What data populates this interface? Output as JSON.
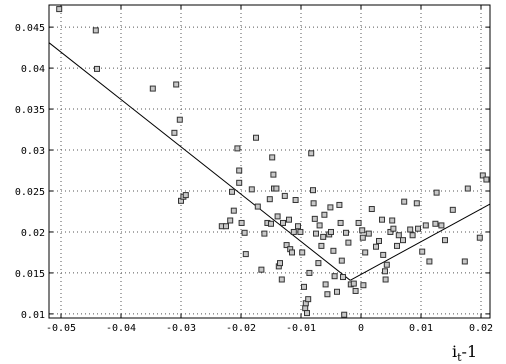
{
  "chart_data": {
    "type": "scatter",
    "title": "",
    "xlabel": {
      "main": "i",
      "subscript": "t",
      "suffix": "-1"
    },
    "ylabel": "",
    "xlim": [
      -0.052,
      0.0215
    ],
    "ylim": [
      0.0095,
      0.0477
    ],
    "x_ticks": [
      -0.05,
      -0.04,
      -0.03,
      -0.02,
      -0.01,
      0,
      0.01,
      0.02
    ],
    "x_tick_labels": [
      "-0.05",
      "-0.04",
      "-0.03",
      "-0.02",
      "-0.01",
      "0",
      "0.01",
      "0.02"
    ],
    "y_ticks": [
      0.01,
      0.015,
      0.02,
      0.025,
      0.03,
      0.035,
      0.04,
      0.045
    ],
    "y_tick_labels": [
      "0.01",
      "0.015",
      "0.02",
      "0.025",
      "0.03",
      "0.035",
      "0.04",
      "0.045"
    ],
    "grid": true,
    "marker": "hollow-square",
    "colors": {
      "marker_fill": "#c8c8c8",
      "marker_stroke": "#333333",
      "line": "#000000",
      "grid": "#555555"
    },
    "points": [
      [
        -0.0503,
        0.0472
      ],
      [
        -0.0442,
        0.0446
      ],
      [
        -0.044,
        0.0399
      ],
      [
        -0.0347,
        0.0375
      ],
      [
        -0.0308,
        0.038
      ],
      [
        -0.0311,
        0.0321
      ],
      [
        -0.0302,
        0.0337
      ],
      [
        -0.03,
        0.0238
      ],
      [
        -0.0296,
        0.0243
      ],
      [
        -0.0292,
        0.0245
      ],
      [
        -0.0232,
        0.0207
      ],
      [
        -0.0225,
        0.0207
      ],
      [
        -0.0218,
        0.0214
      ],
      [
        -0.0215,
        0.0249
      ],
      [
        -0.0212,
        0.0226
      ],
      [
        -0.0206,
        0.0302
      ],
      [
        -0.0203,
        0.0275
      ],
      [
        -0.0203,
        0.026
      ],
      [
        -0.0199,
        0.0211
      ],
      [
        -0.0194,
        0.0199
      ],
      [
        -0.0192,
        0.0173
      ],
      [
        -0.0182,
        0.0252
      ],
      [
        -0.0175,
        0.0315
      ],
      [
        -0.0172,
        0.0231
      ],
      [
        -0.0166,
        0.0154
      ],
      [
        -0.0161,
        0.0198
      ],
      [
        -0.0156,
        0.0211
      ],
      [
        -0.0152,
        0.024
      ],
      [
        -0.015,
        0.021
      ],
      [
        -0.0148,
        0.0291
      ],
      [
        -0.0146,
        0.027
      ],
      [
        -0.0145,
        0.0253
      ],
      [
        -0.0141,
        0.0253
      ],
      [
        -0.0139,
        0.0219
      ],
      [
        -0.0137,
        0.0158
      ],
      [
        -0.0135,
        0.0162
      ],
      [
        -0.0132,
        0.0142
      ],
      [
        -0.013,
        0.0211
      ],
      [
        -0.0127,
        0.0244
      ],
      [
        -0.0124,
        0.0184
      ],
      [
        -0.012,
        0.0215
      ],
      [
        -0.0118,
        0.0179
      ],
      [
        -0.0115,
        0.0175
      ],
      [
        -0.0112,
        0.02
      ],
      [
        -0.0109,
        0.0239
      ],
      [
        -0.0105,
        0.0207
      ],
      [
        -0.0101,
        0.02
      ],
      [
        -0.0098,
        0.0175
      ],
      [
        -0.0095,
        0.0133
      ],
      [
        -0.0093,
        0.0107
      ],
      [
        -0.0092,
        0.0113
      ],
      [
        -0.009,
        0.0101
      ],
      [
        -0.0088,
        0.0118
      ],
      [
        -0.0086,
        0.015
      ],
      [
        -0.0083,
        0.0296
      ],
      [
        -0.008,
        0.0251
      ],
      [
        -0.0079,
        0.0235
      ],
      [
        -0.0077,
        0.0216
      ],
      [
        -0.0075,
        0.0198
      ],
      [
        -0.0071,
        0.0162
      ],
      [
        -0.0069,
        0.0208
      ],
      [
        -0.0066,
        0.0183
      ],
      [
        -0.0063,
        0.0194
      ],
      [
        -0.0061,
        0.0221
      ],
      [
        -0.0059,
        0.0136
      ],
      [
        -0.0056,
        0.0124
      ],
      [
        -0.0053,
        0.0197
      ],
      [
        -0.0051,
        0.023
      ],
      [
        -0.005,
        0.02
      ],
      [
        -0.0046,
        0.0177
      ],
      [
        -0.0044,
        0.0146
      ],
      [
        -0.004,
        0.0127
      ],
      [
        -0.0036,
        0.0233
      ],
      [
        -0.0034,
        0.0211
      ],
      [
        -0.0032,
        0.0165
      ],
      [
        -0.003,
        0.0145
      ],
      [
        -0.0028,
        0.0099
      ],
      [
        -0.0025,
        0.0199
      ],
      [
        -0.0021,
        0.0187
      ],
      [
        -0.0017,
        0.0136
      ],
      [
        -0.0012,
        0.0137
      ],
      [
        -0.0009,
        0.0128
      ],
      [
        -0.0004,
        0.0211
      ],
      [
        0.0002,
        0.0202
      ],
      [
        0.0003,
        0.0193
      ],
      [
        0.0004,
        0.0135
      ],
      [
        0.0007,
        0.0175
      ],
      [
        0.0013,
        0.0198
      ],
      [
        0.0018,
        0.0228
      ],
      [
        0.0025,
        0.0182
      ],
      [
        0.003,
        0.0189
      ],
      [
        0.0035,
        0.0215
      ],
      [
        0.0037,
        0.0172
      ],
      [
        0.004,
        0.0152
      ],
      [
        0.0041,
        0.0142
      ],
      [
        0.0043,
        0.016
      ],
      [
        0.0049,
        0.02
      ],
      [
        0.0052,
        0.0214
      ],
      [
        0.0054,
        0.0204
      ],
      [
        0.006,
        0.0183
      ],
      [
        0.0063,
        0.0196
      ],
      [
        0.007,
        0.019
      ],
      [
        0.0072,
        0.0237
      ],
      [
        0.0082,
        0.0203
      ],
      [
        0.0086,
        0.0196
      ],
      [
        0.0093,
        0.0235
      ],
      [
        0.0095,
        0.0204
      ],
      [
        0.0102,
        0.0176
      ],
      [
        0.0108,
        0.0208
      ],
      [
        0.0114,
        0.0164
      ],
      [
        0.0124,
        0.021
      ],
      [
        0.0126,
        0.0248
      ],
      [
        0.0134,
        0.0208
      ],
      [
        0.014,
        0.019
      ],
      [
        0.0153,
        0.0227
      ],
      [
        0.0173,
        0.0164
      ],
      [
        0.0178,
        0.0253
      ],
      [
        0.0198,
        0.0193
      ],
      [
        0.0203,
        0.0269
      ],
      [
        0.0209,
        0.0264
      ]
    ],
    "fit_lines": [
      {
        "x": [
          -0.052,
          -0.0018
        ],
        "y": [
          0.0431,
          0.0141
        ]
      },
      {
        "x": [
          -0.0018,
          0.0215
        ],
        "y": [
          0.0141,
          0.0234
        ]
      }
    ]
  }
}
